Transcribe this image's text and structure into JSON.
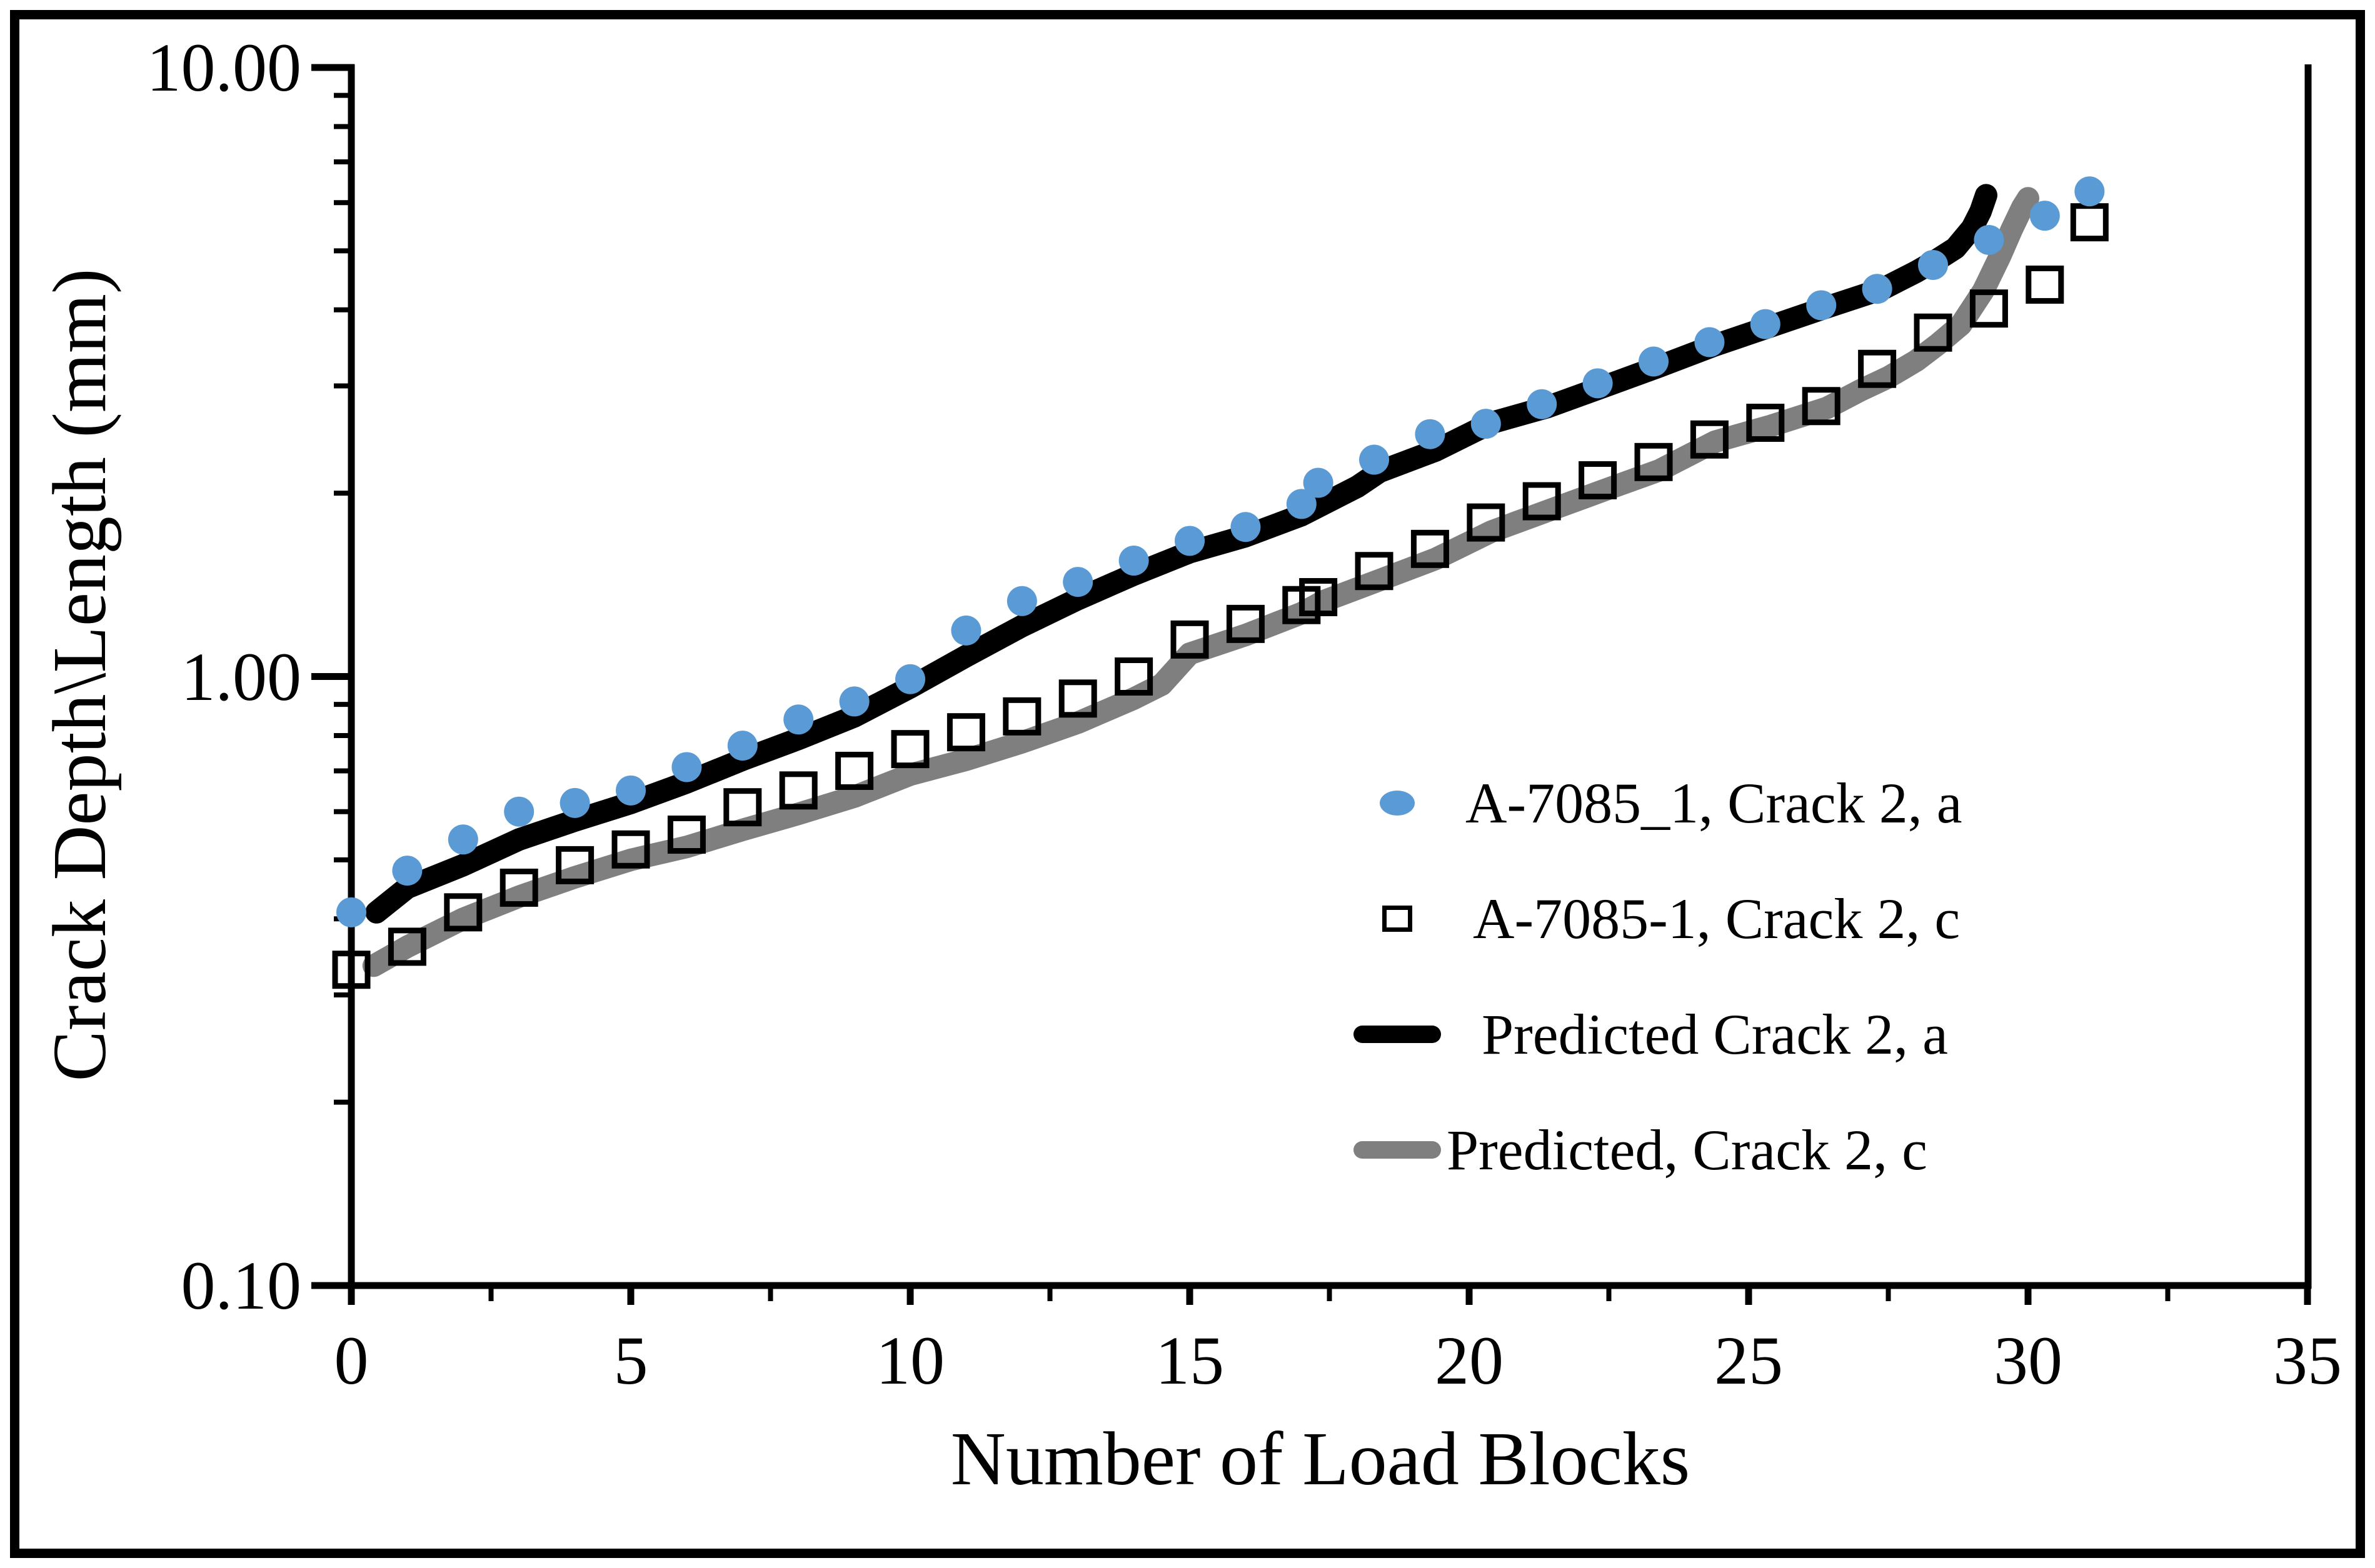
{
  "chart_data": {
    "type": "scatter",
    "title": "",
    "xlabel": "Number of Load Blocks",
    "ylabel": "Crack Depth\\Length (mm)",
    "x_axis": {
      "min": 0,
      "max": 35,
      "major_ticks": [
        0,
        5,
        10,
        15,
        20,
        25,
        30,
        35
      ],
      "minor_ticks": [
        2.5,
        7.5,
        12.5,
        17.5,
        22.5,
        27.5,
        32.5
      ],
      "grid": false
    },
    "y_axis": {
      "scale": "log",
      "min": 0.1,
      "max": 10.0,
      "major_tick_labels": [
        "0.10",
        "1.00",
        "10.00"
      ],
      "major_tick_values": [
        0.1,
        1,
        10
      ],
      "minor_ticks": [
        0.2,
        0.3,
        0.4,
        0.5,
        0.6,
        0.7,
        0.8,
        0.9,
        2,
        3,
        4,
        5,
        6,
        7,
        8,
        9
      ],
      "grid": false
    },
    "legend_position": "inside-right",
    "colors": {
      "series_a_blue": "#5B9BD5",
      "predicted_a_black": "#000000",
      "predicted_c_gray": "#7F7F7F"
    },
    "series": [
      {
        "name": "A-7085_1, Crack 2, a",
        "type": "scatter",
        "marker": "circle",
        "color": "#5B9BD5",
        "x": [
          0,
          1,
          2,
          3,
          4,
          5,
          6,
          7,
          8,
          9,
          10,
          11,
          12,
          13,
          14,
          15,
          16,
          17,
          17.3,
          18.3,
          19.3,
          20.3,
          21.3,
          22.3,
          23.3,
          24.3,
          25.3,
          26.3,
          27.3,
          28.3,
          29.3,
          30.3,
          31.1
        ],
        "y": [
          0.41,
          0.48,
          0.54,
          0.6,
          0.62,
          0.65,
          0.71,
          0.77,
          0.85,
          0.91,
          0.99,
          1.19,
          1.33,
          1.43,
          1.55,
          1.67,
          1.76,
          1.92,
          2.08,
          2.27,
          2.5,
          2.6,
          2.8,
          3.03,
          3.29,
          3.54,
          3.79,
          4.07,
          4.33,
          4.74,
          5.21,
          5.71,
          6.26
        ]
      },
      {
        "name": "A-7085-1, Crack 2, c",
        "type": "scatter",
        "marker": "open-square",
        "color": "#000000",
        "x": [
          0,
          1,
          2,
          3,
          4,
          5,
          6,
          7,
          8,
          9,
          10,
          11,
          12,
          13,
          14,
          15,
          16,
          17,
          17.3,
          18.3,
          19.3,
          20.3,
          21.3,
          22.3,
          23.3,
          24.3,
          25.3,
          26.3,
          27.3,
          28.3,
          29.3,
          30.3,
          31.1
        ],
        "y": [
          0.33,
          0.36,
          0.41,
          0.45,
          0.49,
          0.52,
          0.55,
          0.61,
          0.65,
          0.7,
          0.76,
          0.81,
          0.86,
          0.92,
          1.0,
          1.15,
          1.22,
          1.31,
          1.35,
          1.49,
          1.62,
          1.79,
          1.94,
          2.1,
          2.25,
          2.45,
          2.61,
          2.78,
          3.2,
          3.67,
          4.02,
          4.4,
          5.57
        ]
      },
      {
        "name": "Predicted Crack 2, a",
        "type": "line",
        "color": "#000000",
        "points": [
          [
            0.45,
            0.41
          ],
          [
            1,
            0.45
          ],
          [
            2,
            0.49
          ],
          [
            3,
            0.54
          ],
          [
            4,
            0.58
          ],
          [
            5,
            0.62
          ],
          [
            6,
            0.67
          ],
          [
            7,
            0.73
          ],
          [
            8,
            0.79
          ],
          [
            9,
            0.86
          ],
          [
            10,
            0.96
          ],
          [
            11,
            1.08
          ],
          [
            12,
            1.21
          ],
          [
            13,
            1.34
          ],
          [
            14,
            1.47
          ],
          [
            15,
            1.6
          ],
          [
            16,
            1.7
          ],
          [
            17,
            1.84
          ],
          [
            18,
            2.05
          ],
          [
            18.4,
            2.17
          ],
          [
            19.4,
            2.35
          ],
          [
            20.4,
            2.61
          ],
          [
            21.4,
            2.77
          ],
          [
            22.4,
            2.99
          ],
          [
            23.4,
            3.23
          ],
          [
            24.4,
            3.5
          ],
          [
            25.4,
            3.76
          ],
          [
            26.4,
            4.04
          ],
          [
            27.4,
            4.33
          ],
          [
            28.0,
            4.62
          ],
          [
            28.4,
            4.85
          ],
          [
            28.7,
            5.05
          ],
          [
            29.0,
            5.45
          ],
          [
            29.15,
            5.8
          ],
          [
            29.25,
            6.17
          ]
        ]
      },
      {
        "name": "Predicted, Crack 2, c",
        "type": "line",
        "color": "#7F7F7F",
        "points": [
          [
            0.4,
            0.335
          ],
          [
            1,
            0.36
          ],
          [
            2,
            0.4
          ],
          [
            3,
            0.435
          ],
          [
            4,
            0.468
          ],
          [
            5,
            0.5
          ],
          [
            6,
            0.525
          ],
          [
            7,
            0.56
          ],
          [
            8,
            0.595
          ],
          [
            9,
            0.635
          ],
          [
            10,
            0.69
          ],
          [
            11,
            0.73
          ],
          [
            12,
            0.78
          ],
          [
            13,
            0.84
          ],
          [
            14,
            0.92
          ],
          [
            14.5,
            0.97
          ],
          [
            15,
            1.09
          ],
          [
            16,
            1.17
          ],
          [
            17,
            1.27
          ],
          [
            17.4,
            1.33
          ],
          [
            18.4,
            1.44
          ],
          [
            19.4,
            1.56
          ],
          [
            20.4,
            1.73
          ],
          [
            21.4,
            1.87
          ],
          [
            22.4,
            2.02
          ],
          [
            23.4,
            2.18
          ],
          [
            24.4,
            2.43
          ],
          [
            25.4,
            2.58
          ],
          [
            26.4,
            2.76
          ],
          [
            27.0,
            2.95
          ],
          [
            27.5,
            3.1
          ],
          [
            28.0,
            3.3
          ],
          [
            28.4,
            3.52
          ],
          [
            28.8,
            3.78
          ],
          [
            29.2,
            4.3
          ],
          [
            29.5,
            4.9
          ],
          [
            29.7,
            5.4
          ],
          [
            29.9,
            5.9
          ],
          [
            30.0,
            6.1
          ]
        ]
      }
    ]
  }
}
